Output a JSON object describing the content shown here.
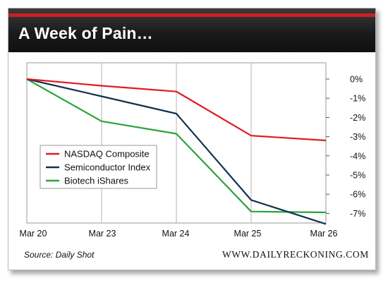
{
  "title": "A Week of Pain…",
  "source": "Source: Daily Shot",
  "site": "WWW.DAILYRECKONING.COM",
  "colors": {
    "header_stripe": "#cc2020",
    "nasdaq": "#e01b24",
    "semi": "#12324e",
    "biotech": "#2aa33a"
  },
  "chart_data": {
    "type": "line",
    "categories": [
      "Mar 20",
      "Mar 23",
      "Mar 24",
      "Mar 25",
      "Mar 26"
    ],
    "yticks": [
      "0%",
      "-1%",
      "-2%",
      "-3%",
      "-4%",
      "-5%",
      "-6%",
      "-7%"
    ],
    "ylim": [
      -7.5,
      0
    ],
    "series": [
      {
        "name": "NASDAQ Composite",
        "color": "#e01b24",
        "values": [
          0,
          -0.35,
          -0.65,
          -2.95,
          -3.2
        ]
      },
      {
        "name": "Semiconductor Index",
        "color": "#12324e",
        "values": [
          0,
          -0.9,
          -1.8,
          -6.3,
          -7.55
        ]
      },
      {
        "name": "Biotech iShares",
        "color": "#2aa33a",
        "values": [
          0,
          -2.2,
          -2.85,
          -6.9,
          -6.95
        ]
      }
    ],
    "grid": "vertical",
    "legend_position": "left-middle"
  }
}
